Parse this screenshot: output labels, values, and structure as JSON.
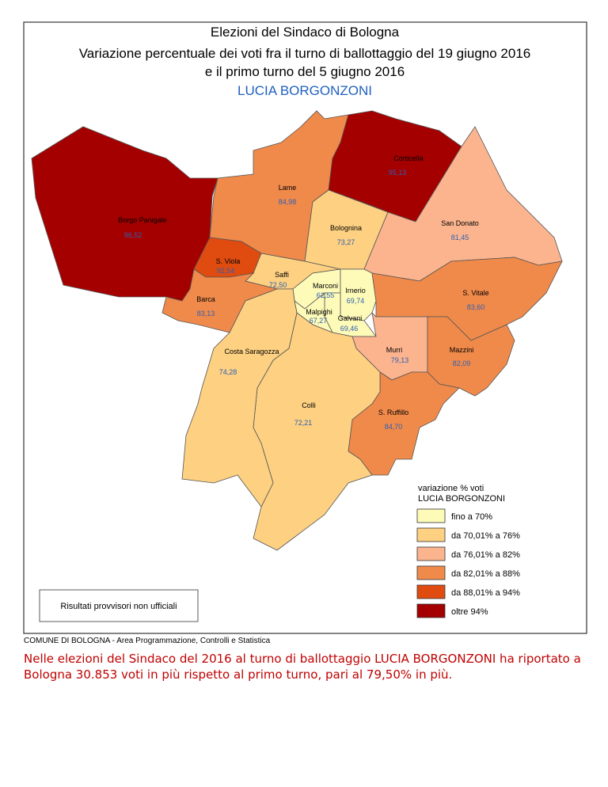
{
  "header": {
    "title": [
      "Elezioni del Sindaco di Bologna",
      "Variazione percentuale dei voti fra il turno di ballottaggio del 19 giugno 2016",
      "e il primo turno del 5 giugno 2016"
    ],
    "candidate": "LUCIA BORGONZONI"
  },
  "zones": [
    {
      "name": "Borgo Panigale",
      "value": "96,52"
    },
    {
      "name": "Lame",
      "value": "84,98"
    },
    {
      "name": "Corticella",
      "value": "95,13"
    },
    {
      "name": "Bolognina",
      "value": "73,27"
    },
    {
      "name": "San Donato",
      "value": "81,45"
    },
    {
      "name": "S. Viola",
      "value": "92,54"
    },
    {
      "name": "Saffi",
      "value": "72,50"
    },
    {
      "name": "Barca",
      "value": "83,13"
    },
    {
      "name": "Marconi",
      "value": "62,55"
    },
    {
      "name": "Irnerio",
      "value": "69,74"
    },
    {
      "name": "Galvani",
      "value": "69,46"
    },
    {
      "name": "Malpighi",
      "value": "67,27"
    },
    {
      "name": "S. Vitale",
      "value": "83,60"
    },
    {
      "name": "Murri",
      "value": "79,13"
    },
    {
      "name": "Mazzini",
      "value": "82,09"
    },
    {
      "name": "S. Ruffillo",
      "value": "84,70"
    },
    {
      "name": "Colli",
      "value": "72,21"
    },
    {
      "name": "Costa Saragozza",
      "value": "74,28"
    }
  ],
  "legend": {
    "title": [
      "variazione % voti",
      "LUCIA BORGONZONI"
    ],
    "items": [
      "fino a 70%",
      "da 70,01% a 76%",
      "da 76,01% a 82%",
      "da 82,01% a 88%",
      "da 88,01% a 94%",
      "oltre 94%"
    ]
  },
  "note": "Risultati provvisori non ufficiali",
  "credit": "COMUNE DI BOLOGNA - Area Programmazione, Controlli e Statistica",
  "summary": "Nelle elezioni del Sindaco del 2016 al turno di ballottaggio LUCIA BORGONZONI ha riportato a Bologna 30.853 voti in più rispetto al primo turno, pari al 79,50% in più."
}
